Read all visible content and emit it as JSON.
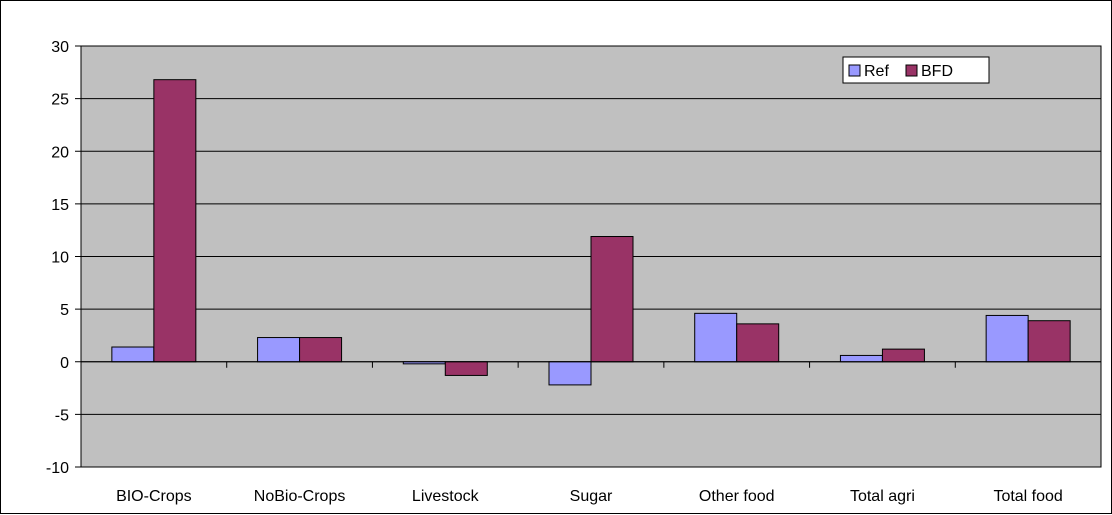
{
  "chart_data": {
    "type": "bar",
    "title": "",
    "xlabel": "",
    "ylabel": "",
    "categories": [
      "BIO-Crops",
      "NoBio-Crops",
      "Livestock",
      "Sugar",
      "Other food",
      "Total agri",
      "Total food"
    ],
    "series": [
      {
        "name": "Ref",
        "values": [
          1.4,
          2.3,
          -0.2,
          -2.2,
          4.6,
          0.6,
          4.4
        ]
      },
      {
        "name": "BFD",
        "values": [
          26.8,
          2.3,
          -1.3,
          11.9,
          3.6,
          1.2,
          3.9
        ]
      }
    ],
    "ylim": [
      -10,
      30
    ],
    "yticks": [
      -10,
      -5,
      0,
      5,
      10,
      15,
      20,
      25,
      30
    ],
    "grid": true,
    "legend": "top-right",
    "colors": {
      "plot_background": "#c0c0c0",
      "series": [
        "#9999ff",
        "#993366"
      ],
      "gridline": "#000000"
    }
  }
}
